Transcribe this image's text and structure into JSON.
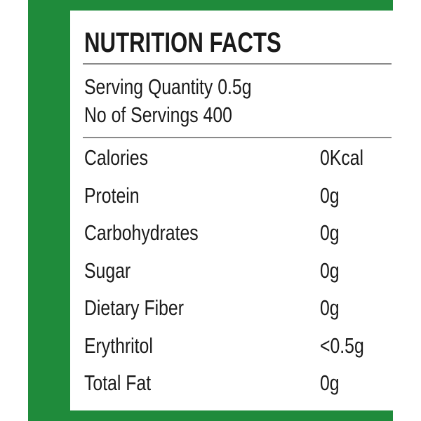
{
  "title": "NUTRITION FACTS",
  "serving": [
    "Serving Quantity 0.5g",
    "No of Servings 400"
  ],
  "rows": [
    [
      "Calories",
      "0Kcal"
    ],
    [
      "Protein",
      "0g"
    ],
    [
      "Carbohydrates",
      "0g"
    ],
    [
      "Sugar",
      "0g"
    ],
    [
      "Dietary Fiber",
      "0g"
    ],
    [
      "Erythritol",
      "<0.5g"
    ],
    [
      "Total Fat",
      "0g"
    ]
  ]
}
